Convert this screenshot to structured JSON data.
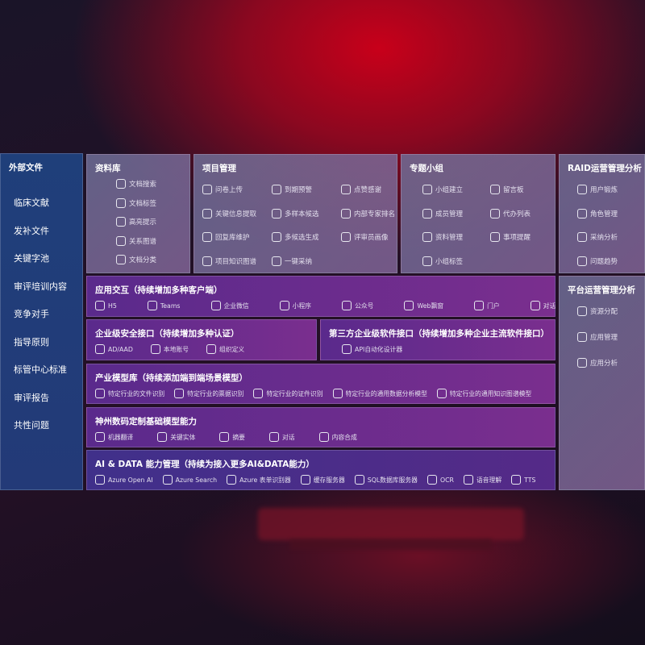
{
  "sidebar": {
    "title": "外部文件",
    "items": [
      "临床文献",
      "发补文件",
      "关键字池",
      "审评培训内容",
      "竞争对手",
      "指导原则",
      "标管中心标准",
      "审评报告",
      "共性问题"
    ]
  },
  "library": {
    "title": "资料库",
    "items": [
      {
        "label": "文档搜索",
        "icon": "document-search-icon"
      },
      {
        "label": "文档标签",
        "icon": "tag-icon"
      },
      {
        "label": "高亮提示",
        "icon": "pen-icon"
      },
      {
        "label": "关系图谱",
        "icon": "graph-icon"
      },
      {
        "label": "文档分类",
        "icon": "document-stack-icon"
      }
    ]
  },
  "project": {
    "title": "项目管理",
    "items": [
      {
        "label": "问卷上传",
        "icon": "cloud-upload-icon"
      },
      {
        "label": "到期预警",
        "icon": "alarm-icon"
      },
      {
        "label": "点赞感谢",
        "icon": "thumbs-up-icon"
      },
      {
        "label": "关键信息提取",
        "icon": "extract-icon"
      },
      {
        "label": "多样本候选",
        "icon": "reply-all-icon"
      },
      {
        "label": "内部专家排名",
        "icon": "ranking-icon"
      },
      {
        "label": "回复库维护",
        "icon": "edit-icon"
      },
      {
        "label": "多候选生成",
        "icon": "puzzle-icon"
      },
      {
        "label": "评审员画像",
        "icon": "user-icon"
      },
      {
        "label": "项目知识图谱",
        "icon": "graph-icon"
      },
      {
        "label": "一键采纳",
        "icon": "reply-icon"
      }
    ]
  },
  "group": {
    "title": "专题小组",
    "items": [
      {
        "label": "小组建立",
        "icon": "group-icon"
      },
      {
        "label": "留言板",
        "icon": "bbs-icon"
      },
      {
        "label": "成员管理",
        "icon": "user-add-icon"
      },
      {
        "label": "代办列表",
        "icon": "clipboard-icon"
      },
      {
        "label": "资料管理",
        "icon": "folder-icon"
      },
      {
        "label": "事项提醒",
        "icon": "bell-icon"
      },
      {
        "label": "小组标签",
        "icon": "tag-icon"
      }
    ]
  },
  "raid": {
    "title": "RAID运营管理分析",
    "items": [
      {
        "label": "用户锻炼",
        "icon": "id-card-icon"
      },
      {
        "label": "角色管理",
        "icon": "users-icon"
      },
      {
        "label": "采纳分析",
        "icon": "qa-icon"
      },
      {
        "label": "问题趋势",
        "icon": "trend-icon"
      }
    ]
  },
  "platform": {
    "title": "平台运营管理分析",
    "items": [
      {
        "label": "资源分配",
        "icon": "list-icon"
      },
      {
        "label": "应用管理",
        "icon": "apps-icon"
      },
      {
        "label": "应用分析",
        "icon": "chart-icon"
      }
    ]
  },
  "app": {
    "title": "应用交互（持续增加多种客户端）",
    "items": [
      {
        "label": "H5",
        "icon": "html5-icon"
      },
      {
        "label": "Teams",
        "icon": "teams-icon"
      },
      {
        "label": "企业微信",
        "icon": "wecom-icon"
      },
      {
        "label": "小程序",
        "icon": "mini-program-icon"
      },
      {
        "label": "公众号",
        "icon": "official-account-icon"
      },
      {
        "label": "Web飘窗",
        "icon": "window-icon"
      },
      {
        "label": "门户",
        "icon": "portal-icon"
      },
      {
        "label": "对话",
        "icon": "chat-icon"
      }
    ]
  },
  "security": {
    "title": "企业级安全接口（持续增加多种认证）",
    "items": [
      {
        "label": "AD/AAD",
        "icon": "ad-icon"
      },
      {
        "label": "本地账号",
        "icon": "account-icon"
      },
      {
        "label": "组织定义",
        "icon": "org-icon"
      }
    ]
  },
  "thirdparty": {
    "title": "第三方企业级软件接口（持续增加多种企业主流软件接口）",
    "items": [
      {
        "label": "API自动化设计器",
        "icon": "gear-icon"
      }
    ]
  },
  "industry": {
    "title": "产业模型库（持续添加端到端场景模型）",
    "items": [
      {
        "label": "特定行业的文件识别",
        "icon": "file-icon"
      },
      {
        "label": "特定行业的票据识别",
        "icon": "receipt-icon"
      },
      {
        "label": "特定行业的证件识别",
        "icon": "id-card-icon"
      },
      {
        "label": "特定行业的通用数据分析模型",
        "icon": "data-icon"
      },
      {
        "label": "特定行业的通用知识图谱模型",
        "icon": "graph-icon"
      }
    ]
  },
  "base": {
    "title": "神州数码定制基础模型能力",
    "items": [
      {
        "label": "机器翻译",
        "icon": "translate-icon"
      },
      {
        "label": "关键实体",
        "icon": "entity-icon"
      },
      {
        "label": "摘要",
        "icon": "summary-icon"
      },
      {
        "label": "对话",
        "icon": "chat-icon"
      },
      {
        "label": "内容合成",
        "icon": "compose-icon"
      }
    ]
  },
  "ai": {
    "title": "AI & DATA 能力管理（持续为接入更多AI&DATA能力）",
    "items": [
      {
        "label": "Azure Open AI",
        "icon": "openai-icon"
      },
      {
        "label": "Azure Search",
        "icon": "search-icon"
      },
      {
        "label": "Azure 表单识别器",
        "icon": "form-icon"
      },
      {
        "label": "缓存服务器",
        "icon": "cache-icon"
      },
      {
        "label": "SQL数据库服务器",
        "icon": "database-icon"
      },
      {
        "label": "OCR",
        "icon": "ocr-icon"
      },
      {
        "label": "语音理解",
        "icon": "speech-icon"
      },
      {
        "label": "TTS",
        "icon": "tts-icon"
      }
    ]
  }
}
